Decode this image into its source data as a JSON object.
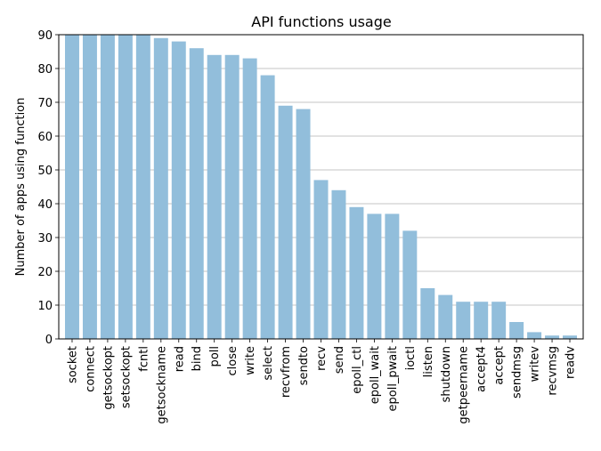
{
  "chart_data": {
    "type": "bar",
    "title": "API functions usage",
    "xlabel": "",
    "ylabel": "Number of apps using function",
    "ylim": [
      0,
      90
    ],
    "yticks": [
      0,
      10,
      20,
      30,
      40,
      50,
      60,
      70,
      80,
      90
    ],
    "grid": "horizontal",
    "bar_color": "#92bedb",
    "categories": [
      "socket",
      "connect",
      "getsockopt",
      "setsockopt",
      "fcntl",
      "getsockname",
      "read",
      "bind",
      "poll",
      "close",
      "write",
      "select",
      "recvfrom",
      "sendto",
      "recv",
      "send",
      "epoll_ctl",
      "epoll_wait",
      "epoll_pwait",
      "ioctl",
      "listen",
      "shutdown",
      "getpeername",
      "accept4",
      "accept",
      "sendmsg",
      "writev",
      "recvmsg",
      "readv"
    ],
    "values": [
      90,
      90,
      90,
      90,
      90,
      89,
      88,
      86,
      84,
      84,
      83,
      78,
      69,
      68,
      47,
      44,
      39,
      37,
      37,
      32,
      15,
      13,
      11,
      11,
      11,
      5,
      2,
      1,
      1
    ]
  }
}
